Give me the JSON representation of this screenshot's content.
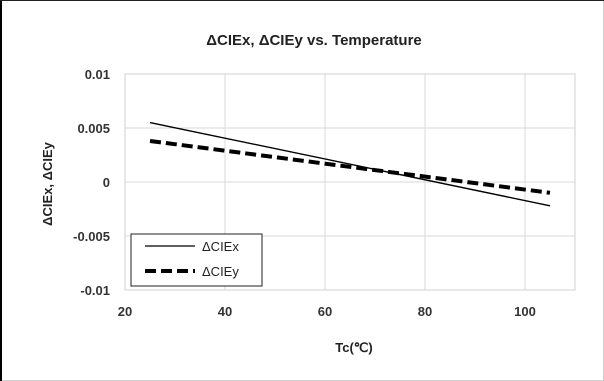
{
  "chart_data": {
    "type": "line",
    "title": "ΔCIEx, ΔCIEy vs. Temperature",
    "xlabel": "Tc(℃)",
    "ylabel": "ΔCIEx, ΔCIEy",
    "xlim": [
      20,
      110
    ],
    "ylim": [
      -0.01,
      0.01
    ],
    "x_ticks": [
      20,
      40,
      60,
      80,
      100
    ],
    "x_tick_labels": [
      "20",
      "40",
      "60",
      "80",
      "100"
    ],
    "y_ticks": [
      0.01,
      0.005,
      0,
      -0.005,
      -0.01
    ],
    "y_tick_labels": [
      "0.01",
      "0.005",
      "0",
      "-0.005",
      "-0.01"
    ],
    "grid": true,
    "legend_position": "bottom-left",
    "series": [
      {
        "name": "ΔCIEx",
        "style": "solid",
        "color": "#000000",
        "x": [
          25,
          105
        ],
        "y": [
          0.0055,
          -0.0022
        ]
      },
      {
        "name": "ΔCIEy",
        "style": "dashed",
        "color": "#000000",
        "x": [
          25,
          105
        ],
        "y": [
          0.0038,
          -0.001
        ]
      }
    ]
  }
}
